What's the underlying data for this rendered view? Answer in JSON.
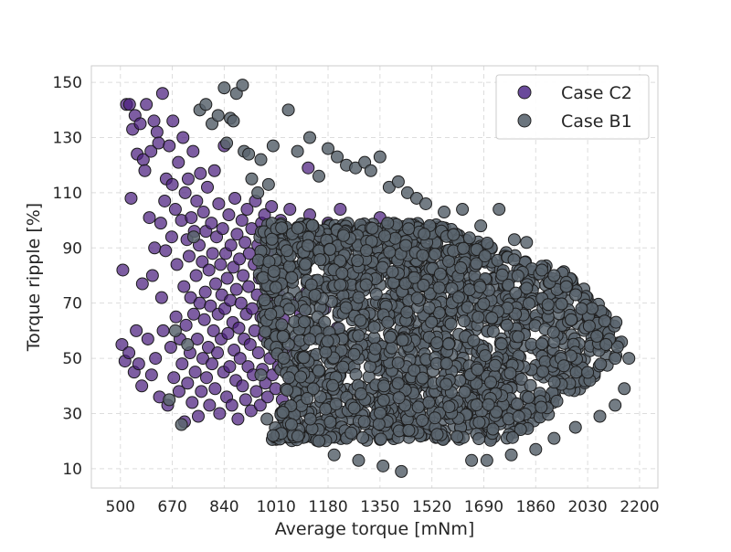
{
  "chart_data": {
    "type": "scatter",
    "title": "",
    "xlabel": "Average torque [mNm]",
    "ylabel": "Torque ripple [%]",
    "xlim": [
      405,
      2260
    ],
    "ylim": [
      3,
      156
    ],
    "xticks": [
      500,
      670,
      840,
      1010,
      1180,
      1350,
      1520,
      1690,
      1860,
      2030,
      2200
    ],
    "yticks": [
      10,
      30,
      50,
      70,
      90,
      110,
      130,
      150
    ],
    "grid": true,
    "legend_position": "top-right",
    "series": [
      {
        "name": "Case C2",
        "color": "#4b1e7e",
        "points": [
          [
            505,
            55
          ],
          [
            508,
            82
          ],
          [
            515,
            49
          ],
          [
            520,
            142
          ],
          [
            528,
            52
          ],
          [
            530,
            142
          ],
          [
            535,
            108
          ],
          [
            540,
            133
          ],
          [
            545,
            45
          ],
          [
            548,
            138
          ],
          [
            552,
            60
          ],
          [
            555,
            124
          ],
          [
            560,
            48
          ],
          [
            565,
            135
          ],
          [
            570,
            40
          ],
          [
            572,
            77
          ],
          [
            575,
            122
          ],
          [
            580,
            118
          ],
          [
            585,
            142
          ],
          [
            590,
            57
          ],
          [
            595,
            101
          ],
          [
            600,
            125
          ],
          [
            602,
            44
          ],
          [
            605,
            80
          ],
          [
            610,
            136
          ],
          [
            612,
            90
          ],
          [
            615,
            50
          ],
          [
            620,
            132
          ],
          [
            625,
            128
          ],
          [
            628,
            36
          ],
          [
            632,
            99
          ],
          [
            635,
            72
          ],
          [
            638,
            146
          ],
          [
            640,
            60
          ],
          [
            645,
            107
          ],
          [
            648,
            89
          ],
          [
            650,
            115
          ],
          [
            655,
            33
          ],
          [
            660,
            127
          ],
          [
            665,
            54
          ],
          [
            668,
            94
          ],
          [
            670,
            113
          ],
          [
            672,
            136
          ],
          [
            675,
            43
          ],
          [
            680,
            104
          ],
          [
            682,
            65
          ],
          [
            685,
            84
          ],
          [
            690,
            121
          ],
          [
            692,
            38
          ],
          [
            695,
            57
          ],
          [
            700,
            100
          ],
          [
            702,
            48
          ],
          [
            705,
            130
          ],
          [
            708,
            76
          ],
          [
            710,
            27
          ],
          [
            712,
            110
          ],
          [
            715,
            62
          ],
          [
            718,
            93
          ],
          [
            720,
            41
          ],
          [
            722,
            115
          ],
          [
            725,
            87
          ],
          [
            728,
            52
          ],
          [
            730,
            72
          ],
          [
            732,
            101
          ],
          [
            735,
            34
          ],
          [
            738,
            125
          ],
          [
            740,
            66
          ],
          [
            742,
            96
          ],
          [
            745,
            45
          ],
          [
            748,
            80
          ],
          [
            750,
            107
          ],
          [
            752,
            57
          ],
          [
            755,
            29
          ],
          [
            758,
            91
          ],
          [
            760,
            70
          ],
          [
            762,
            117
          ],
          [
            765,
            38
          ],
          [
            768,
            85
          ],
          [
            770,
            50
          ],
          [
            772,
            103
          ],
          [
            775,
            64
          ],
          [
            778,
            74
          ],
          [
            780,
            96
          ],
          [
            782,
            43
          ],
          [
            785,
            112
          ],
          [
            788,
            54
          ],
          [
            790,
            82
          ],
          [
            792,
            33
          ],
          [
            795,
            69
          ],
          [
            798,
            99
          ],
          [
            800,
            48
          ],
          [
            802,
            88
          ],
          [
            805,
            60
          ],
          [
            808,
            118
          ],
          [
            810,
            39
          ],
          [
            812,
            77
          ],
          [
            815,
            94
          ],
          [
            818,
            52
          ],
          [
            820,
            66
          ],
          [
            822,
            106
          ],
          [
            825,
            30
          ],
          [
            828,
            84
          ],
          [
            830,
            57
          ],
          [
            832,
            73
          ],
          [
            835,
            97
          ],
          [
            838,
            45
          ],
          [
            840,
            127
          ],
          [
            842,
            68
          ],
          [
            845,
            88
          ],
          [
            848,
            36
          ],
          [
            850,
            79
          ],
          [
            852,
            59
          ],
          [
            855,
            102
          ],
          [
            858,
            47
          ],
          [
            860,
            71
          ],
          [
            862,
            91
          ],
          [
            865,
            33
          ],
          [
            868,
            63
          ],
          [
            870,
            83
          ],
          [
            872,
            53
          ],
          [
            875,
            108
          ],
          [
            878,
            42
          ],
          [
            880,
            75
          ],
          [
            882,
            95
          ],
          [
            885,
            28
          ],
          [
            888,
            61
          ],
          [
            890,
            86
          ],
          [
            892,
            50
          ],
          [
            895,
            70
          ],
          [
            898,
            100
          ],
          [
            900,
            40
          ],
          [
            902,
            80
          ],
          [
            905,
            57
          ],
          [
            908,
            92
          ],
          [
            910,
            35
          ],
          [
            912,
            66
          ],
          [
            915,
            104
          ],
          [
            918,
            47
          ],
          [
            920,
            76
          ],
          [
            922,
            88
          ],
          [
            925,
            55
          ],
          [
            928,
            31
          ],
          [
            930,
            97
          ],
          [
            932,
            68
          ],
          [
            935,
            44
          ],
          [
            938,
            84
          ],
          [
            940,
            60
          ],
          [
            942,
            107
          ],
          [
            945,
            38
          ],
          [
            948,
            73
          ],
          [
            950,
            91
          ],
          [
            952,
            52
          ],
          [
            955,
            79
          ],
          [
            958,
            33
          ],
          [
            960,
            65
          ],
          [
            962,
            99
          ],
          [
            965,
            46
          ],
          [
            968,
            86
          ],
          [
            970,
            58
          ],
          [
            972,
            102
          ],
          [
            975,
            41
          ],
          [
            978,
            71
          ],
          [
            980,
            94
          ],
          [
            982,
            36
          ],
          [
            985,
            62
          ],
          [
            988,
            89
          ],
          [
            990,
            50
          ],
          [
            992,
            76
          ],
          [
            995,
            105
          ],
          [
            998,
            44
          ],
          [
            1000,
            68
          ],
          [
            1005,
            92
          ],
          [
            1008,
            39
          ],
          [
            1010,
            59
          ],
          [
            1015,
            84
          ],
          [
            1018,
            47
          ],
          [
            1020,
            73
          ],
          [
            1025,
            100
          ],
          [
            1030,
            35
          ],
          [
            1035,
            64
          ],
          [
            1040,
            88
          ],
          [
            1045,
            52
          ],
          [
            1050,
            78
          ],
          [
            1055,
            104
          ],
          [
            1060,
            42
          ],
          [
            1065,
            70
          ],
          [
            1070,
            95
          ],
          [
            1075,
            56
          ],
          [
            1080,
            82
          ],
          [
            1085,
            38
          ],
          [
            1090,
            66
          ],
          [
            1095,
            91
          ],
          [
            1100,
            48
          ],
          [
            1110,
            74
          ],
          [
            1115,
            119
          ],
          [
            1120,
            102
          ],
          [
            1130,
            58
          ],
          [
            1140,
            87
          ],
          [
            1150,
            45
          ],
          [
            1160,
            94
          ],
          [
            1170,
            68
          ],
          [
            1180,
            99
          ],
          [
            1190,
            53
          ],
          [
            1200,
            85
          ],
          [
            1210,
            61
          ],
          [
            1220,
            104
          ],
          [
            1230,
            77
          ],
          [
            1250,
            92
          ],
          [
            1270,
            70
          ],
          [
            1290,
            97
          ],
          [
            1320,
            80
          ],
          [
            1350,
            101
          ]
        ]
      },
      {
        "name": "Case B1",
        "color": "#5b656e"
      }
    ],
    "b1_region": {
      "left": [
        [
          970,
          20
        ],
        [
          1000,
          25
        ],
        [
          1020,
          30
        ],
        [
          1040,
          40
        ],
        [
          1020,
          48
        ],
        [
          990,
          52
        ],
        [
          975,
          58
        ],
        [
          965,
          64
        ],
        [
          960,
          70
        ],
        [
          955,
          78
        ],
        [
          950,
          86
        ],
        [
          955,
          94
        ],
        [
          975,
          100
        ],
        [
          1000,
          104
        ],
        [
          1030,
          106
        ],
        [
          1070,
          106
        ],
        [
          1110,
          106
        ],
        [
          1170,
          104
        ],
        [
          1230,
          106
        ],
        [
          1300,
          109
        ],
        [
          1360,
          110
        ],
        [
          1400,
          110
        ],
        [
          1420,
          103
        ],
        [
          1460,
          100
        ],
        [
          1520,
          99
        ]
      ],
      "right": [
        [
          1270,
          18
        ],
        [
          1360,
          14
        ],
        [
          1440,
          11
        ],
        [
          1520,
          10
        ],
        [
          1600,
          14
        ],
        [
          1690,
          18
        ],
        [
          1780,
          21
        ],
        [
          1860,
          26
        ],
        [
          1930,
          32
        ],
        [
          2000,
          38
        ],
        [
          2060,
          44
        ],
        [
          2110,
          48
        ],
        [
          2140,
          52
        ],
        [
          2150,
          56
        ],
        [
          2140,
          60
        ],
        [
          2110,
          66
        ],
        [
          2070,
          72
        ],
        [
          2030,
          76
        ],
        [
          1980,
          80
        ],
        [
          1920,
          83
        ],
        [
          1860,
          85
        ],
        [
          1790,
          88
        ],
        [
          1720,
          91
        ],
        [
          1650,
          94
        ],
        [
          1580,
          97
        ],
        [
          1520,
          99
        ]
      ],
      "outliers": [
        [
          660,
          35
        ],
        [
          680,
          60
        ],
        [
          700,
          26
        ],
        [
          720,
          55
        ],
        [
          740,
          94
        ],
        [
          760,
          140
        ],
        [
          780,
          142
        ],
        [
          800,
          135
        ],
        [
          820,
          138
        ],
        [
          840,
          148
        ],
        [
          848,
          128
        ],
        [
          860,
          137
        ],
        [
          870,
          136
        ],
        [
          880,
          146
        ],
        [
          900,
          149
        ],
        [
          905,
          125
        ],
        [
          920,
          124
        ],
        [
          930,
          115
        ],
        [
          950,
          110
        ],
        [
          960,
          122
        ],
        [
          985,
          113
        ],
        [
          1000,
          127
        ],
        [
          1050,
          140
        ],
        [
          1080,
          125
        ],
        [
          1120,
          130
        ],
        [
          1150,
          116
        ],
        [
          1180,
          126
        ],
        [
          1210,
          123
        ],
        [
          1240,
          120
        ],
        [
          1270,
          119
        ],
        [
          1300,
          121
        ],
        [
          1320,
          118
        ],
        [
          1350,
          123
        ],
        [
          1380,
          112
        ],
        [
          1410,
          114
        ],
        [
          1440,
          110
        ],
        [
          1470,
          108
        ],
        [
          1500,
          106
        ],
        [
          1560,
          103
        ],
        [
          1620,
          104
        ],
        [
          1680,
          98
        ],
        [
          1740,
          104
        ],
        [
          1790,
          93
        ],
        [
          1830,
          92
        ],
        [
          1880,
          82
        ],
        [
          1920,
          80
        ],
        [
          1960,
          76
        ],
        [
          2010,
          68
        ],
        [
          2060,
          58
        ],
        [
          2090,
          55
        ],
        [
          2120,
          50
        ],
        [
          2165,
          50
        ],
        [
          2150,
          39
        ],
        [
          2120,
          33
        ],
        [
          2070,
          29
        ],
        [
          1990,
          25
        ],
        [
          1920,
          21
        ],
        [
          1860,
          17
        ],
        [
          1780,
          15
        ],
        [
          1700,
          13
        ],
        [
          1650,
          13
        ],
        [
          1420,
          9
        ],
        [
          1360,
          11
        ],
        [
          1280,
          13
        ],
        [
          1200,
          15
        ],
        [
          1150,
          20
        ],
        [
          1060,
          26
        ],
        [
          1000,
          22
        ],
        [
          980,
          28
        ],
        [
          960,
          44
        ]
      ]
    }
  },
  "legend": {
    "items": [
      {
        "label": "Case C2",
        "color": "#6a4a9b"
      },
      {
        "label": "Case B1",
        "color": "#6b757e"
      }
    ]
  }
}
